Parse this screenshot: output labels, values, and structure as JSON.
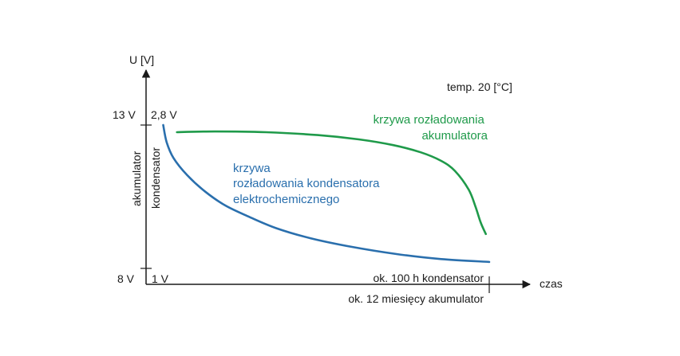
{
  "chart_data": {
    "type": "line",
    "title": "",
    "ylabel": "U [V]",
    "xlabel": "czas",
    "temperature_note": "temp. 20 [°C]",
    "y_secondary_labels": {
      "battery": "akumulator",
      "capacitor": "kondensator"
    },
    "y_ticks": {
      "top": {
        "battery": "13 V",
        "capacitor": "2,8 V"
      },
      "bottom": {
        "battery": "8 V",
        "capacitor": "1 V"
      }
    },
    "x_end_labels": {
      "capacitor": "ok. 100 h kondensator",
      "battery": "ok. 12 miesięcy akumulator"
    },
    "xlim": [
      0,
      1
    ],
    "ylim": [
      0,
      1
    ],
    "series": [
      {
        "name": "krzywa rozładowania kondensatora elektrochemicznego",
        "label_lines": [
          "krzywa",
          "rozładowania kondensatora",
          "elektrochemicznego"
        ],
        "color": "#2a6fad",
        "x": [
          0.05,
          0.06,
          0.08,
          0.12,
          0.17,
          0.23,
          0.3,
          0.38,
          0.48,
          0.6,
          0.73,
          0.86,
          1.0
        ],
        "y": [
          1.0,
          0.88,
          0.77,
          0.65,
          0.54,
          0.44,
          0.36,
          0.28,
          0.21,
          0.15,
          0.1,
          0.065,
          0.045
        ]
      },
      {
        "name": "krzywa rozładowania akumulatora",
        "label_lines": [
          "krzywa rozładowania",
          "akumulatora"
        ],
        "color": "#1f9a4a",
        "x": [
          0.09,
          0.2,
          0.35,
          0.5,
          0.62,
          0.72,
          0.8,
          0.86,
          0.9,
          0.94,
          0.96,
          0.975,
          0.99
        ],
        "y": [
          0.95,
          0.955,
          0.95,
          0.93,
          0.9,
          0.86,
          0.81,
          0.75,
          0.68,
          0.55,
          0.43,
          0.32,
          0.24
        ]
      }
    ]
  }
}
